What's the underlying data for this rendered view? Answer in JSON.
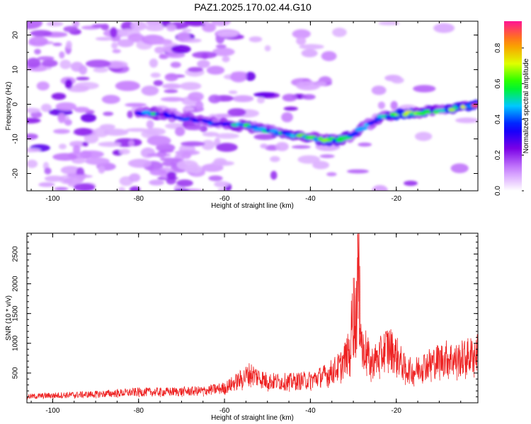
{
  "title": "PAZ1.2025.170.02.44.G10",
  "chart_data": [
    {
      "type": "heatmap",
      "xlabel": "Height of straight line (km)",
      "ylabel": "Frequency (Hz)",
      "xlim": [
        -106,
        -1
      ],
      "ylim": [
        -25,
        24
      ],
      "xticks": [
        -100,
        -80,
        -60,
        -40,
        -20
      ],
      "yticks": [
        -20,
        -10,
        0,
        10,
        20
      ],
      "colorbar": {
        "label": "Normalized spectral amplitude",
        "range": [
          0.0,
          0.95
        ],
        "ticks": [
          0.0,
          0.2,
          0.4,
          0.6,
          0.8
        ],
        "colors": [
          "#ffffff",
          "#cc88ff",
          "#7a00e6",
          "#0000ff",
          "#00c8ff",
          "#00ff00",
          "#e0ff00",
          "#ff8c00",
          "#ff1493"
        ]
      },
      "ridge": {
        "x": [
          -80,
          -76,
          -72,
          -66,
          -62,
          -58,
          -54,
          -50,
          -46,
          -42,
          -38,
          -34,
          -30,
          -27,
          -24,
          -20,
          -16,
          -12,
          -8,
          -4,
          -1
        ],
        "y": [
          -2.5,
          -2.5,
          -3.5,
          -4.5,
          -5.5,
          -6,
          -6.5,
          -7.5,
          -8.5,
          -9,
          -10,
          -10.5,
          -9,
          -6,
          -4,
          -3,
          -2.5,
          -2,
          -1.5,
          -0.5,
          0
        ],
        "amplitude": [
          0.45,
          0.5,
          0.4,
          0.45,
          0.4,
          0.5,
          0.6,
          0.55,
          0.6,
          0.6,
          0.65,
          0.7,
          0.5,
          0.45,
          0.5,
          0.75,
          0.65,
          0.6,
          0.65,
          0.7,
          0.85
        ]
      }
    },
    {
      "type": "line",
      "xlabel": "Height of straight line (km)",
      "ylabel": "SNR (10 * v/v)",
      "xlim": [
        -106,
        -1
      ],
      "ylim": [
        0,
        2850
      ],
      "xticks": [
        -100,
        -80,
        -60,
        -40,
        -20
      ],
      "yticks": [
        500,
        1000,
        1500,
        2000,
        2500
      ],
      "series": [
        {
          "color": "#ee2222",
          "x": [
            -106,
            -100,
            -95,
            -90,
            -85,
            -80,
            -75,
            -70,
            -65,
            -60,
            -56,
            -54,
            -50,
            -45,
            -40,
            -36,
            -33,
            -31,
            -30,
            -29.5,
            -29,
            -28.5,
            -28,
            -27,
            -26,
            -24,
            -22,
            -20,
            -18,
            -16,
            -14,
            -12,
            -10,
            -8,
            -6,
            -4,
            -2,
            -1
          ],
          "y": [
            110,
            130,
            140,
            150,
            170,
            190,
            190,
            200,
            210,
            260,
            420,
            520,
            380,
            370,
            400,
            500,
            650,
            900,
            2100,
            1800,
            2830,
            2300,
            1200,
            900,
            700,
            800,
            1000,
            850,
            600,
            550,
            650,
            700,
            750,
            800,
            750,
            800,
            850,
            880
          ]
        }
      ]
    }
  ]
}
